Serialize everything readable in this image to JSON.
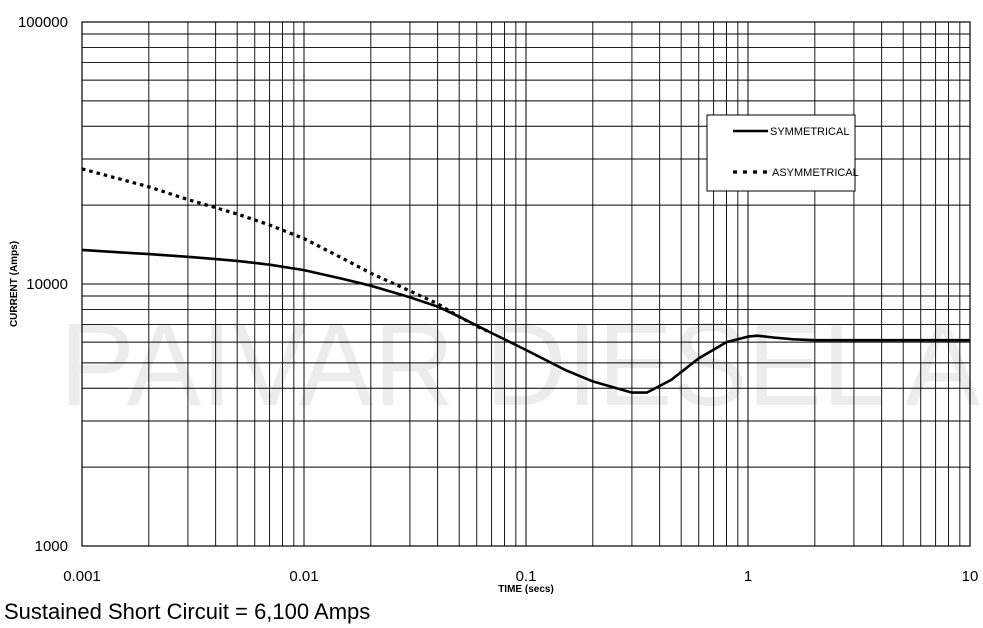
{
  "watermark": {
    "text": "PAIVAR DIESEL A"
  },
  "footer": {
    "text": "Sustained Short Circuit = 6,100 Amps"
  },
  "chart_data": {
    "type": "line",
    "title": "",
    "xlabel": "TIME (secs)",
    "ylabel": "CURRENT (Amps)",
    "x_scale": "log",
    "y_scale": "log",
    "xlim": [
      0.001,
      10
    ],
    "ylim": [
      1000,
      100000
    ],
    "x_tick_labels": [
      "0.001",
      "0.01",
      "0.1",
      "1",
      "10"
    ],
    "x_tick_values": [
      0.001,
      0.01,
      0.1,
      1,
      10
    ],
    "y_tick_labels": [
      "1000",
      "10000",
      "100000"
    ],
    "y_tick_values": [
      1000,
      10000,
      100000
    ],
    "grid": true,
    "legend_position": "right",
    "series": [
      {
        "name": "SYMMETRICAL",
        "style": "solid",
        "color": "#000000",
        "x": [
          0.001,
          0.0015,
          0.002,
          0.003,
          0.004,
          0.005,
          0.007,
          0.01,
          0.015,
          0.02,
          0.03,
          0.04,
          0.05,
          0.07,
          0.1,
          0.15,
          0.2,
          0.3,
          0.35,
          0.45,
          0.6,
          0.8,
          1.0,
          1.1,
          1.3,
          1.6,
          2,
          3,
          5,
          10
        ],
        "y": [
          13500,
          13200,
          13000,
          12700,
          12450,
          12250,
          11850,
          11300,
          10450,
          9850,
          8900,
          8200,
          7500,
          6500,
          5600,
          4700,
          4250,
          3850,
          3850,
          4300,
          5200,
          6000,
          6300,
          6350,
          6250,
          6150,
          6100,
          6100,
          6100,
          6100
        ]
      },
      {
        "name": "ASYMMETRICAL",
        "style": "dotted",
        "color": "#000000",
        "x": [
          0.001,
          0.002,
          0.003,
          0.005,
          0.007,
          0.01,
          0.015,
          0.02,
          0.03,
          0.04,
          0.05,
          0.06,
          0.07
        ],
        "y": [
          27500,
          23500,
          21000,
          18500,
          16800,
          14900,
          12500,
          11000,
          9400,
          8400,
          7500,
          6900,
          6500
        ]
      }
    ]
  }
}
